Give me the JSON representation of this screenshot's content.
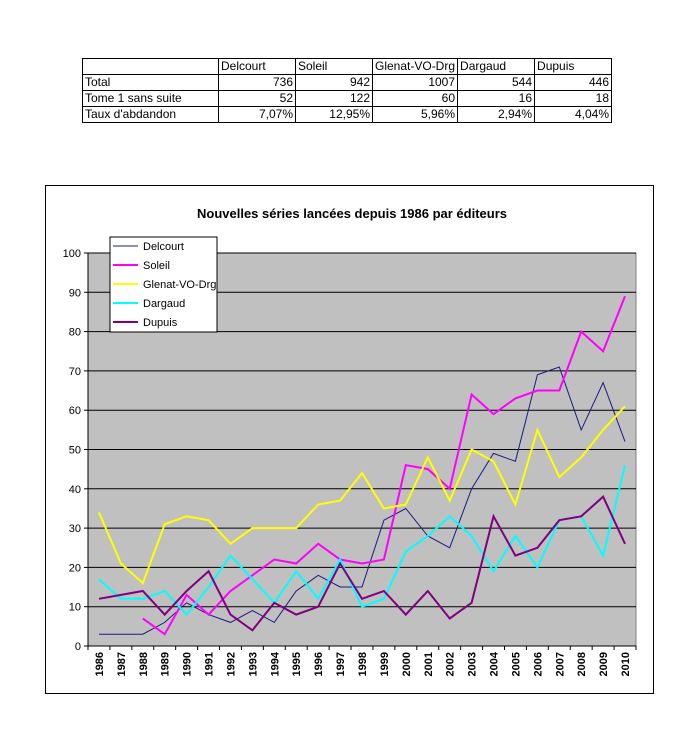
{
  "table": {
    "headers": [
      "",
      "Delcourt",
      "Soleil",
      "Glenat-VO-Drg",
      "Dargaud",
      "Dupuis"
    ],
    "rows": [
      {
        "label": "Total",
        "values": [
          "736",
          "942",
          "1007",
          "544",
          "446"
        ]
      },
      {
        "label": "Tome 1 sans suite",
        "values": [
          "52",
          "122",
          "60",
          "16",
          "18"
        ]
      },
      {
        "label": "Taux d'abdandon",
        "values": [
          "7,07%",
          "12,95%",
          "5,96%",
          "2,94%",
          "4,04%"
        ]
      }
    ]
  },
  "chart_data": {
    "type": "line",
    "title": "Nouvelles séries lancées depuis 1986 par éditeurs",
    "xlabel": "",
    "ylabel": "",
    "ylim": [
      0,
      100
    ],
    "yticks": [
      "0",
      "10",
      "20",
      "30",
      "40",
      "50",
      "60",
      "70",
      "80",
      "90",
      "100"
    ],
    "grid": true,
    "legend": "top-left",
    "categories": [
      "1986",
      "1987",
      "1988",
      "1989",
      "1990",
      "1991",
      "1992",
      "1993",
      "1994",
      "1995",
      "1996",
      "1997",
      "1998",
      "1999",
      "2000",
      "2001",
      "2002",
      "2003",
      "2004",
      "2005",
      "2006",
      "2007",
      "2008",
      "2009",
      "2010"
    ],
    "series": [
      {
        "name": "Delcourt",
        "color": "#1a1a80",
        "values": [
          3,
          3,
          3,
          6,
          11,
          8,
          6,
          9,
          6,
          14,
          18,
          15,
          15,
          32,
          35,
          28,
          25,
          40,
          49,
          47,
          69,
          71,
          55,
          67,
          52
        ]
      },
      {
        "name": "Soleil",
        "color": "#ff00ff",
        "values": [
          null,
          null,
          7,
          3,
          13,
          8,
          14,
          18,
          22,
          21,
          26,
          22,
          21,
          22,
          46,
          45,
          40,
          64,
          59,
          63,
          65,
          65,
          80,
          75,
          89
        ]
      },
      {
        "name": "Glenat-VO-Drg",
        "color": "#ffff00",
        "values": [
          34,
          21,
          16,
          31,
          33,
          32,
          26,
          30,
          30,
          30,
          36,
          37,
          44,
          35,
          36,
          48,
          37,
          50,
          47,
          36,
          55,
          43,
          48,
          55,
          61
        ]
      },
      {
        "name": "Dargaud",
        "color": "#00ffff",
        "values": [
          17,
          12,
          12,
          14,
          8,
          15,
          23,
          17,
          11,
          19,
          12,
          22,
          10,
          12,
          24,
          28,
          33,
          28,
          19,
          28,
          20,
          32,
          33,
          23,
          46
        ]
      },
      {
        "name": "Dupuis",
        "color": "#800080",
        "values": [
          12,
          13,
          14,
          8,
          14,
          19,
          8,
          4,
          11,
          8,
          10,
          21,
          12,
          14,
          8,
          14,
          7,
          11,
          33,
          23,
          25,
          32,
          33,
          38,
          26
        ]
      }
    ]
  }
}
